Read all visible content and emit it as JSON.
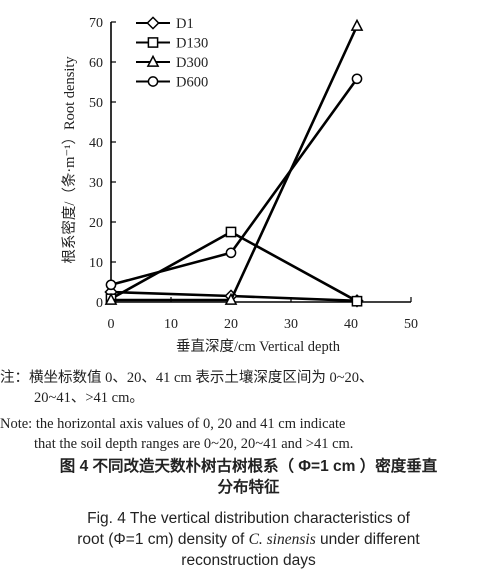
{
  "chart_data": {
    "type": "line",
    "x": [
      0,
      20,
      41
    ],
    "series": [
      {
        "name": "D1",
        "marker": "diamond",
        "values": [
          2.5,
          1.5,
          0.3
        ]
      },
      {
        "name": "D130",
        "marker": "square",
        "values": [
          0.8,
          17.5,
          0.2
        ]
      },
      {
        "name": "D300",
        "marker": "triangle",
        "values": [
          0.5,
          0.5,
          69
        ]
      },
      {
        "name": "D600",
        "marker": "circle",
        "values": [
          4.3,
          12.3,
          55.8
        ]
      }
    ],
    "xlim": [
      0,
      50
    ],
    "ylim": [
      0,
      70
    ],
    "xticks": [
      "0",
      "10",
      "20",
      "30",
      "40",
      "50"
    ],
    "yticks": [
      "0",
      "10",
      "20",
      "30",
      "40",
      "50",
      "60",
      "70"
    ],
    "xlabel": "垂直深度/cm Vertical depth",
    "ylabel": "根系密度/（条·m⁻¹）Root density",
    "legend_position": "top-left",
    "grid": false
  },
  "note": {
    "zh_line1": "注：横坐标数值 0、20、41 cm 表示土壤深度区间为 0~20、",
    "zh_line2": "20~41、>41 cm。",
    "en_line1": "Note: the horizontal axis values of 0, 20 and 41 cm indicate",
    "en_line2": "that the soil depth ranges are 0~20, 20~41 and >41 cm."
  },
  "caption": {
    "zh_line1": "图 4  不同改造天数朴树古树根系（ Φ=1 cm ）密度垂直",
    "zh_line2": "分布特征",
    "en_line1": "Fig. 4  The vertical distribution characteristics of",
    "en_line2a": "root (Φ=1 cm) density of ",
    "en_species": "C. sinensis",
    "en_line2b": " under different",
    "en_line3": "reconstruction days"
  }
}
